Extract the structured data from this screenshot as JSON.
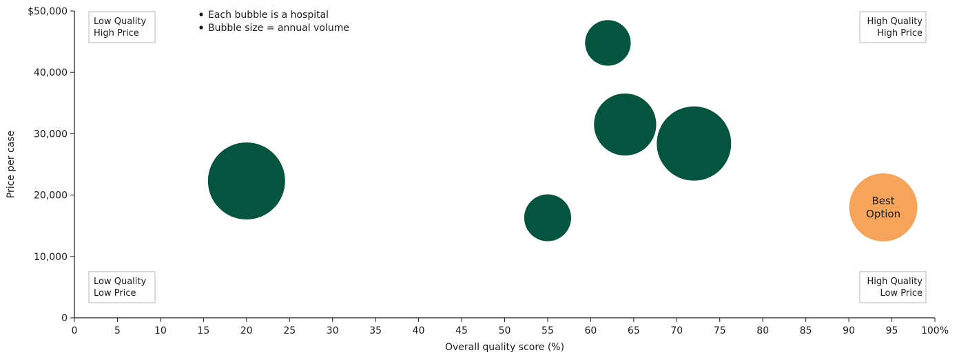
{
  "chart_data": {
    "type": "scatter",
    "variant": "bubble",
    "xlabel": "Overall quality score (%)",
    "ylabel": "Price per case",
    "xlim": [
      0,
      100
    ],
    "ylim": [
      0,
      50000
    ],
    "x_ticks": [
      {
        "value": 0,
        "label": "0"
      },
      {
        "value": 5,
        "label": "5"
      },
      {
        "value": 10,
        "label": "10"
      },
      {
        "value": 15,
        "label": "15"
      },
      {
        "value": 20,
        "label": "20"
      },
      {
        "value": 25,
        "label": "25"
      },
      {
        "value": 30,
        "label": "30"
      },
      {
        "value": 35,
        "label": "35"
      },
      {
        "value": 40,
        "label": "40"
      },
      {
        "value": 45,
        "label": "45"
      },
      {
        "value": 50,
        "label": "50"
      },
      {
        "value": 55,
        "label": "55"
      },
      {
        "value": 60,
        "label": "60"
      },
      {
        "value": 65,
        "label": "65"
      },
      {
        "value": 70,
        "label": "70"
      },
      {
        "value": 75,
        "label": "75"
      },
      {
        "value": 80,
        "label": "80"
      },
      {
        "value": 85,
        "label": "85"
      },
      {
        "value": 90,
        "label": "90"
      },
      {
        "value": 95,
        "label": "95"
      },
      {
        "value": 100,
        "label": "100%"
      }
    ],
    "y_ticks": [
      {
        "value": 0,
        "label": "0"
      },
      {
        "value": 10000,
        "label": "10,000"
      },
      {
        "value": 20000,
        "label": "20,000"
      },
      {
        "value": 30000,
        "label": "30,000"
      },
      {
        "value": 40000,
        "label": "40,000"
      },
      {
        "value": 50000,
        "label": "$50,000"
      }
    ],
    "grid": false,
    "notes": [
      "Each bubble is a hospital",
      "Bubble size = annual volume"
    ],
    "quadrant_labels": {
      "top_left": [
        "Low Quality",
        "High Price"
      ],
      "top_right": [
        "High Quality",
        "High Price"
      ],
      "bottom_left": [
        "Low Quality",
        "Low Price"
      ],
      "bottom_right": [
        "High Quality",
        "Low Price"
      ]
    },
    "colors": {
      "hospital": "#045440",
      "highlight": "#F6A45A",
      "axis": "#1a1a1a",
      "quadrant_border": "#b5b5b5"
    },
    "points": [
      {
        "x": 20,
        "y": 22300,
        "size": 100,
        "label": "",
        "highlight": false
      },
      {
        "x": 55,
        "y": 16300,
        "size": 37,
        "label": "",
        "highlight": false
      },
      {
        "x": 62,
        "y": 44800,
        "size": 35,
        "label": "",
        "highlight": false
      },
      {
        "x": 64,
        "y": 31500,
        "size": 65,
        "label": "",
        "highlight": false
      },
      {
        "x": 72,
        "y": 28400,
        "size": 93,
        "label": "",
        "highlight": false
      },
      {
        "x": 94,
        "y": 18000,
        "size": 78,
        "label": "Best Option",
        "highlight": true
      }
    ]
  }
}
